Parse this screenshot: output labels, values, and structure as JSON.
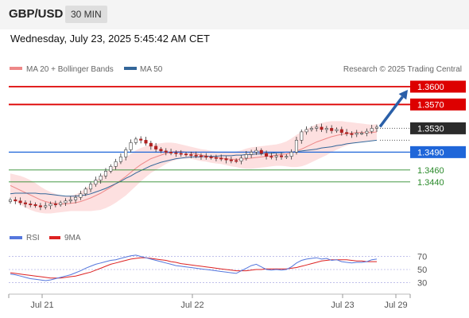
{
  "header": {
    "pair": "GBP/USD",
    "timeframe": "30 MIN",
    "datetime": "Wednesday, July 23, 2025 5:45:42 AM CET"
  },
  "legend": {
    "ma20": "MA 20 + Bollinger Bands",
    "ma50": "MA 50",
    "ma20_color": "#ee8888",
    "ma50_color": "#336699",
    "credit": "Research © 2025 Trading Central"
  },
  "chart_data": {
    "type": "candlestick",
    "ylim": [
      1.3385,
      1.3612
    ],
    "x_ticks": [
      "Jul 21",
      "Jul 22",
      "Jul 23",
      "Jul 29"
    ],
    "current_price": "1.3530",
    "levels": [
      {
        "label": "1.3600",
        "value": 1.36,
        "kind": "resistance",
        "color": "#dd0000"
      },
      {
        "label": "1.3570",
        "value": 1.357,
        "kind": "resistance",
        "color": "#dd0000"
      },
      {
        "label": "1.3490",
        "value": 1.349,
        "kind": "pivot",
        "color": "#1f66d9"
      },
      {
        "label": "1.3460",
        "value": 1.346,
        "kind": "support",
        "color": "#2b8a2b"
      },
      {
        "label": "1.3440",
        "value": 1.344,
        "kind": "support",
        "color": "#2b8a2b"
      }
    ],
    "forecast": {
      "from": 1.353,
      "to": 1.36,
      "color": "#2a5fa8"
    },
    "close": [
      1.341,
      1.3408,
      1.3405,
      1.3403,
      1.3402,
      1.34,
      1.3398,
      1.34,
      1.3403,
      1.3402,
      1.3405,
      1.3408,
      1.341,
      1.3414,
      1.342,
      1.3428,
      1.3436,
      1.3443,
      1.345,
      1.3458,
      1.3466,
      1.3474,
      1.3482,
      1.3494,
      1.3506,
      1.3512,
      1.351,
      1.3505,
      1.35,
      1.3495,
      1.3492,
      1.349,
      1.3489,
      1.3488,
      1.3487,
      1.3486,
      1.3485,
      1.3484,
      1.3483,
      1.3482,
      1.3481,
      1.348,
      1.3479,
      1.3477,
      1.3476,
      1.3475,
      1.348,
      1.3486,
      1.349,
      1.3493,
      1.3488,
      1.3483,
      1.3482,
      1.3484,
      1.3482,
      1.3483,
      1.349,
      1.351,
      1.3524,
      1.3528,
      1.353,
      1.3532,
      1.3528,
      1.353,
      1.3526,
      1.3528,
      1.3523,
      1.3521,
      1.352,
      1.3522,
      1.3522,
      1.3525,
      1.353,
      1.3532
    ],
    "ma20": [
      1.3434,
      1.343,
      1.3426,
      1.3422,
      1.3418,
      1.3414,
      1.341,
      1.3407,
      1.3405,
      1.3404,
      1.3403,
      1.3403,
      1.3404,
      1.3405,
      1.3407,
      1.341,
      1.3413,
      1.3417,
      1.3421,
      1.3426,
      1.3431,
      1.3437,
      1.3443,
      1.3449,
      1.3456,
      1.3463,
      1.3469,
      1.3474,
      1.3479,
      1.3482,
      1.3485,
      1.3488,
      1.349,
      1.3491,
      1.3491,
      1.349,
      1.3489,
      1.3487,
      1.3485,
      1.3484,
      1.3482,
      1.3481,
      1.348,
      1.3479,
      1.3478,
      1.3478,
      1.3478,
      1.3479,
      1.348,
      1.3481,
      1.3482,
      1.3483,
      1.3484,
      1.3485,
      1.3486,
      1.3487,
      1.3489,
      1.3492,
      1.3495,
      1.3499,
      1.3503,
      1.3507,
      1.351,
      1.3513,
      1.3516,
      1.3518,
      1.352,
      1.3521,
      1.3522,
      1.3523,
      1.3523,
      1.3523,
      1.3523,
      1.3524
    ],
    "ma50": [
      1.342,
      1.3421,
      1.3421,
      1.3421,
      1.3421,
      1.3421,
      1.342,
      1.342,
      1.3419,
      1.3418,
      1.3417,
      1.3416,
      1.3416,
      1.3416,
      1.3417,
      1.3418,
      1.342,
      1.3423,
      1.3426,
      1.3429,
      1.3433,
      1.3437,
      1.3441,
      1.3446,
      1.345,
      1.3455,
      1.3459,
      1.3463,
      1.3467,
      1.347,
      1.3473,
      1.3475,
      1.3477,
      1.3479,
      1.348,
      1.3481,
      1.3482,
      1.3482,
      1.3482,
      1.3483,
      1.3483,
      1.3483,
      1.3484,
      1.3484,
      1.3484,
      1.3485,
      1.3485,
      1.3486,
      1.3486,
      1.3487,
      1.3487,
      1.3488,
      1.3488,
      1.3489,
      1.3489,
      1.349,
      1.349,
      1.3491,
      1.3492,
      1.3493,
      1.3494,
      1.3495,
      1.3497,
      1.3498,
      1.3499,
      1.3501,
      1.3502,
      1.3504,
      1.3505,
      1.3506,
      1.3507,
      1.3508,
      1.3509,
      1.351
    ],
    "band_half_width": [
      0.002,
      0.0022,
      0.0024,
      0.0025,
      0.0025,
      0.0024,
      0.0022,
      0.002,
      0.0018,
      0.0016,
      0.0014,
      0.0013,
      0.0013,
      0.0014,
      0.0016,
      0.0019,
      0.0022,
      0.0025,
      0.0028,
      0.003,
      0.0031,
      0.0032,
      0.0032,
      0.0032,
      0.0031,
      0.003,
      0.0028,
      0.0026,
      0.0024,
      0.0022,
      0.002,
      0.0018,
      0.0016,
      0.0014,
      0.0012,
      0.0011,
      0.001,
      0.001,
      0.001,
      0.001,
      0.001,
      0.001,
      0.001,
      0.0011,
      0.0012,
      0.0013,
      0.0015,
      0.0017,
      0.0018,
      0.0018,
      0.0018,
      0.0018,
      0.0018,
      0.0018,
      0.0019,
      0.0021,
      0.0024,
      0.0027,
      0.0029,
      0.003,
      0.003,
      0.003,
      0.0029,
      0.0028,
      0.0026,
      0.0024,
      0.0022,
      0.002,
      0.0018,
      0.0016,
      0.0015,
      0.0014,
      0.0013,
      0.0013
    ],
    "rsi": {
      "legend_rsi": "RSI",
      "legend_ma": "9MA",
      "rsi_color": "#5577dd",
      "ma_color": "#dd2222",
      "ylim": [
        22,
        78
      ],
      "ticks": [
        "70",
        "50",
        "30"
      ],
      "rsi_values": [
        43,
        42,
        40,
        38,
        36,
        35,
        34,
        33,
        34,
        36,
        38,
        40,
        42,
        45,
        48,
        52,
        55,
        58,
        60,
        62,
        64,
        65,
        67,
        69,
        71,
        72,
        70,
        68,
        66,
        64,
        62,
        60,
        58,
        56,
        55,
        54,
        53,
        52,
        51,
        50,
        49,
        48,
        47,
        46,
        45,
        44,
        48,
        52,
        56,
        58,
        54,
        50,
        49,
        50,
        49,
        50,
        54,
        60,
        64,
        66,
        67,
        68,
        66,
        67,
        64,
        65,
        62,
        61,
        60,
        61,
        61,
        62,
        65,
        66
      ],
      "ma_values": [
        45,
        44,
        43,
        42,
        41,
        40,
        39,
        38,
        37,
        37,
        37,
        38,
        39,
        40,
        42,
        44,
        46,
        49,
        52,
        55,
        58,
        60,
        62,
        64,
        66,
        67,
        68,
        68,
        67,
        66,
        65,
        64,
        62,
        61,
        59,
        58,
        57,
        56,
        55,
        54,
        53,
        52,
        51,
        50,
        49,
        48,
        48,
        48,
        49,
        50,
        50,
        51,
        51,
        51,
        51,
        51,
        52,
        53,
        55,
        57,
        59,
        61,
        63,
        64,
        65,
        65,
        65,
        65,
        64,
        63,
        63,
        62,
        62,
        62
      ]
    }
  }
}
